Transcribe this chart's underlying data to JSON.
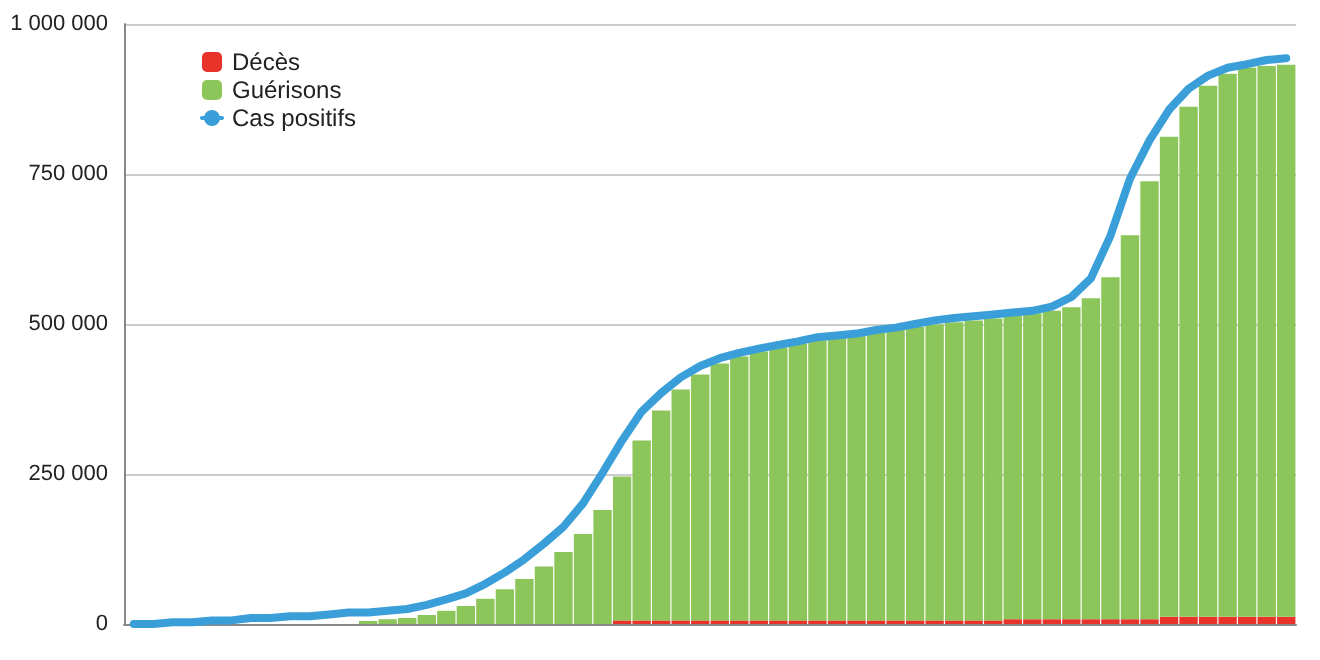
{
  "chart_data": {
    "type": "bar",
    "stacked": true,
    "legend": "top left",
    "grid": "y",
    "tick_labels": "y",
    "marker": "none",
    "line_style": "solid",
    "categories": [
      null,
      null,
      null,
      null,
      null,
      null,
      null,
      null,
      null,
      null,
      null,
      null,
      null,
      null,
      null,
      null,
      null,
      null,
      null,
      null,
      null,
      null,
      null,
      null,
      null,
      null,
      null,
      null,
      null,
      null,
      null,
      null,
      null,
      null,
      null,
      null,
      null,
      null,
      null,
      null,
      null,
      null,
      null,
      null,
      null,
      null,
      null,
      null,
      null,
      null,
      null,
      null,
      null,
      null,
      null,
      null,
      null,
      null,
      null,
      null
    ],
    "ylim": [
      0,
      1000000
    ],
    "yticks": [
      0,
      {
        "value": 250000,
        "label": "250 000"
      },
      {
        "value": 500000,
        "label": "500 000"
      },
      {
        "value": 750000,
        "label": "750 000"
      },
      {
        "value": 1000000,
        "label": "1 000 000"
      }
    ],
    "series": [
      {
        "name": "Décès",
        "color": "#e8332a",
        "values": [
          0,
          0,
          0,
          0,
          0,
          0,
          0,
          0,
          0,
          0,
          0,
          0,
          0,
          0,
          0,
          0,
          0,
          0,
          0,
          0,
          0,
          0,
          0,
          0,
          0,
          6000,
          6000,
          6000,
          6000,
          6000,
          6000,
          6000,
          6000,
          6000,
          6000,
          6000,
          6000,
          6000,
          6000,
          6000,
          6000,
          6000,
          6000,
          6000,
          6000,
          8000,
          8000,
          8000,
          8000,
          8000,
          8000,
          8000,
          8000,
          12000,
          12000,
          12000,
          12000,
          12000,
          12000,
          12000
        ]
      },
      {
        "name": "Guérisons",
        "color": "#8cc65a",
        "values": [
          0,
          0,
          0,
          0,
          0,
          0,
          0,
          0,
          0,
          0,
          0,
          0,
          5000,
          8000,
          10000,
          15000,
          22000,
          30000,
          42000,
          58000,
          75000,
          96000,
          120000,
          150000,
          190000,
          240000,
          300000,
          350000,
          385000,
          410000,
          428000,
          440000,
          448000,
          455000,
          461000,
          467000,
          472000,
          476000,
          480000,
          485000,
          489000,
          493000,
          497000,
          500000,
          503000,
          507000,
          510000,
          514000,
          520000,
          535000,
          570000,
          640000,
          730000,
          800000,
          850000,
          885000,
          905000,
          915000,
          918000,
          920000
        ]
      },
      {
        "name": "Cas positifs",
        "type": "line",
        "color": "#3a9fd8",
        "values": [
          0,
          0,
          3000,
          3000,
          6000,
          6000,
          10000,
          10000,
          13000,
          13000,
          16000,
          19000,
          19000,
          22000,
          25000,
          32000,
          41000,
          51000,
          67000,
          86000,
          108000,
          134000,
          162000,
          201000,
          252000,
          306000,
          354000,
          385000,
          411000,
          430000,
          443000,
          452000,
          459000,
          465000,
          471000,
          478000,
          481000,
          484000,
          490000,
          494000,
          500000,
          506000,
          510000,
          513000,
          516000,
          519000,
          522000,
          529000,
          545000,
          576000,
          647000,
          742000,
          806000,
          857000,
          892000,
          914000,
          927000,
          933000,
          940000,
          943000
        ]
      }
    ]
  }
}
